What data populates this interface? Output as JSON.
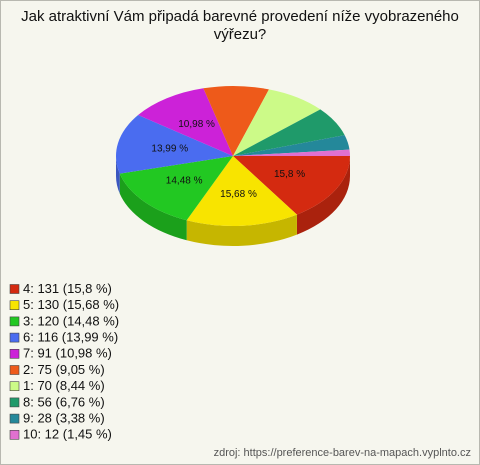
{
  "chart_data": {
    "type": "pie",
    "title": "Jak atraktivní Vám připadá barevné provedení níže vyobrazeného výřezu?",
    "categories": [
      "4",
      "5",
      "3",
      "6",
      "7",
      "2",
      "1",
      "8",
      "9",
      "10"
    ],
    "values": [
      15.8,
      15.68,
      14.48,
      13.99,
      10.98,
      9.05,
      8.44,
      6.76,
      3.38,
      1.45
    ],
    "value_labels": [
      "15,8 %",
      "15,68 %",
      "14,48 %",
      "13,99 %",
      "10,98 %",
      null,
      null,
      null,
      null,
      null
    ],
    "counts": [
      131,
      130,
      120,
      116,
      91,
      75,
      70,
      56,
      28,
      12
    ],
    "legend_labels": [
      "4: 131 (15,8 %)",
      "5: 130 (15,68 %)",
      "3: 120 (14,48 %)",
      "6: 116 (13,99 %)",
      "7: 91 (10,98 %)",
      "2: 75 (9,05 %)",
      "1: 70 (8,44 %)",
      "8: 56 (6,76 %)",
      "9: 28 (3,38 %)",
      "10: 12 (1,45 %)"
    ],
    "colors": [
      "#d42a10",
      "#f8e400",
      "#22c822",
      "#4a6cf0",
      "#cc22d8",
      "#ee5a1a",
      "#ccfa88",
      "#1f9a6a",
      "#24889a",
      "#e070d0"
    ],
    "source": "zdroj: https://preference-barev-na-mapach.vyplnto.cz"
  }
}
